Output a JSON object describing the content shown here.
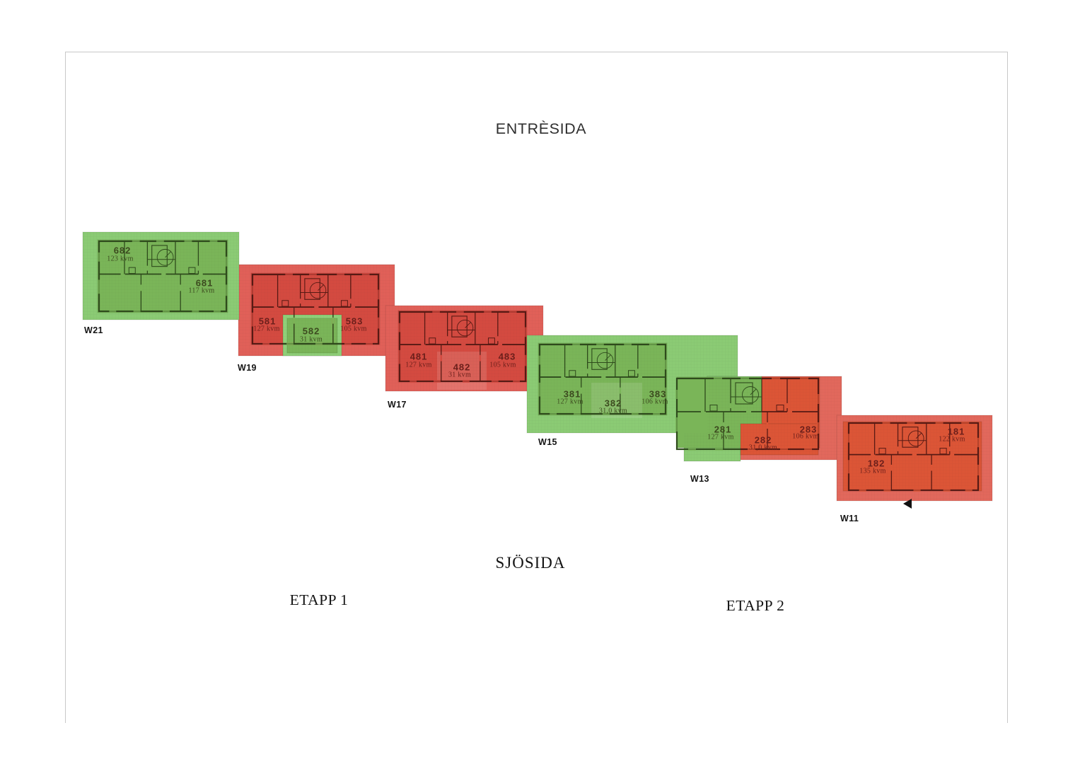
{
  "captions": {
    "entreside": "ENTRÈSIDA",
    "sjoside": "SJÖSIDA",
    "etapp1": "ETAPP 1",
    "etapp2": "ETAPP 2"
  },
  "icons": {
    "plan_arrow": "left-pointing-triangle"
  },
  "palette": {
    "green_margin": "#8BCB74",
    "green_inner": "#7AB558",
    "green_inset": "#8FD078",
    "red_margin": "#E16058",
    "red_inner": "#D44A40",
    "orange_margin": "#E2685C",
    "orange_inner": "#DC5536",
    "wall_green": "#2E4A1C",
    "wall_red": "#571A14",
    "text_green": "#3C4A1F",
    "text_red": "#6B1F1B",
    "frame_color": "#C8C8C8",
    "grid_line": "rgba(40,40,40,0.10)",
    "arrow_color": "#111111"
  },
  "buildings": [
    {
      "label": "W21",
      "status_color": "green",
      "apartments": [
        {
          "number": "682",
          "area": "123 kvm"
        },
        {
          "number": "681",
          "area": "117 kvm"
        }
      ]
    },
    {
      "label": "W19",
      "status_color": "red",
      "apartments": [
        {
          "number": "581",
          "area": "127 kvm"
        },
        {
          "number": "582",
          "area": "31 kvm"
        },
        {
          "number": "583",
          "area": "105 kvm"
        }
      ]
    },
    {
      "label": "W17",
      "status_color": "red",
      "apartments": [
        {
          "number": "481",
          "area": "127 kvm"
        },
        {
          "number": "482",
          "area": "31 kvm"
        },
        {
          "number": "483",
          "area": "105 kvm"
        }
      ]
    },
    {
      "label": "W15",
      "status_color": "green",
      "apartments": [
        {
          "number": "381",
          "area": "127 kvm"
        },
        {
          "number": "382",
          "area": "31,0 kvm"
        },
        {
          "number": "383",
          "area": "106 kvm"
        }
      ]
    },
    {
      "label": "W13",
      "status_color": "green-red",
      "apartments": [
        {
          "number": "281",
          "area": "127 kvm"
        },
        {
          "number": "282",
          "area": "31,0 kvm"
        },
        {
          "number": "283",
          "area": "106 kvm"
        }
      ]
    },
    {
      "label": "W11",
      "status_color": "red",
      "apartments": [
        {
          "number": "181",
          "area": "122 kvm"
        },
        {
          "number": "182",
          "area": "135 kvm"
        }
      ]
    }
  ]
}
